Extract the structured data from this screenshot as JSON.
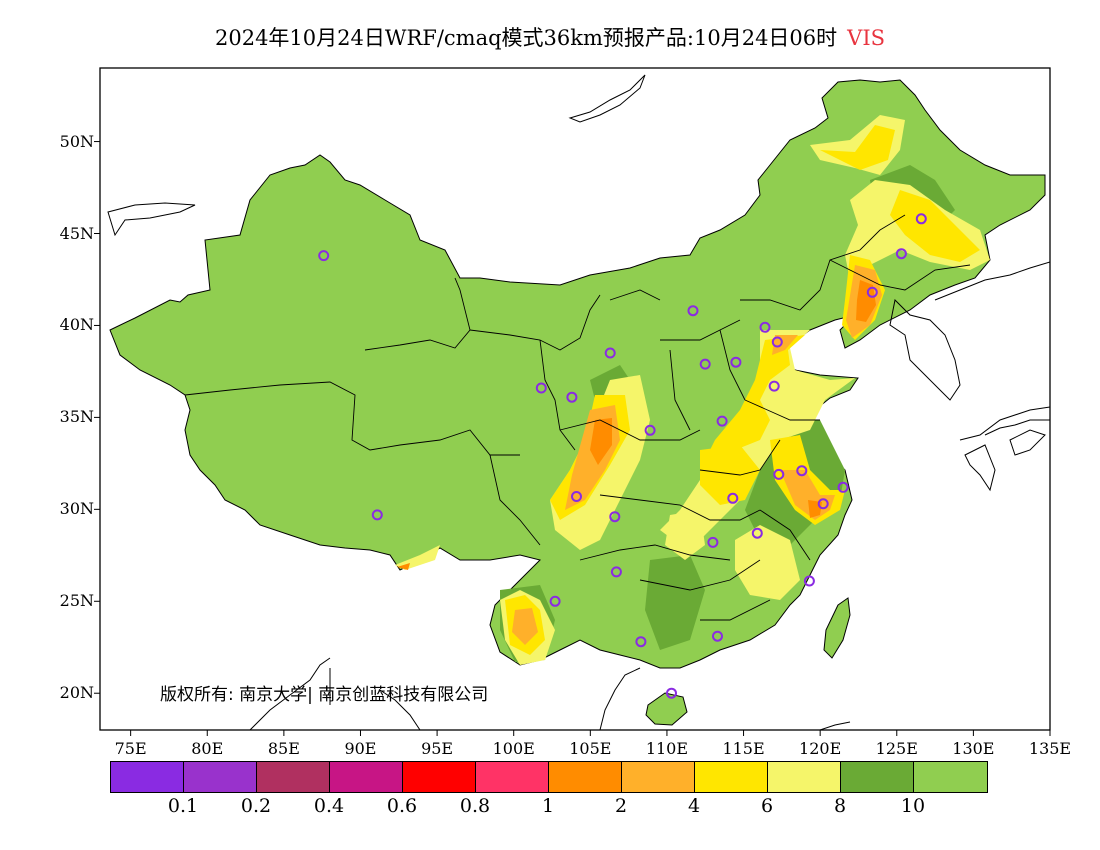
{
  "title": {
    "main": "2024年10月24日WRF/cmaq模式36km预报产品:10月24日06时",
    "variable": "VIS"
  },
  "axes": {
    "lat_labels": [
      "50N",
      "45N",
      "40N",
      "35N",
      "30N",
      "25N",
      "20N"
    ],
    "lon_labels": [
      "75E",
      "80E",
      "85E",
      "90E",
      "95E",
      "100E",
      "105E",
      "110E",
      "115E",
      "120E",
      "125E",
      "130E",
      "135E"
    ],
    "lon_range": [
      73,
      135
    ],
    "lat_range": [
      18,
      54
    ]
  },
  "copyright": "版权所有: 南京大学| 南京创蓝科技有限公司",
  "legend": {
    "colors": [
      "#8a2be2",
      "#9932cc",
      "#b03060",
      "#c71585",
      "#ff0000",
      "#ff3366",
      "#ff8c00",
      "#ffb02a",
      "#ffe600",
      "#f5f56a",
      "#6aaa35",
      "#90ce50"
    ],
    "labels": [
      "0.1",
      "0.2",
      "0.4",
      "0.6",
      "0.8",
      "1",
      "2",
      "4",
      "6",
      "8",
      "10"
    ]
  },
  "colors": {
    "base_land": "#90ce50",
    "dark_green": "#6aaa35",
    "pale_yellow": "#f5f56a",
    "yellow": "#ffe600",
    "amber": "#ffb02a",
    "orange": "#ff8c00",
    "station": "#8a2be2"
  },
  "chart_data": {
    "type": "heatmap",
    "variable": "VIS",
    "stations": [
      {
        "lon": 87.6,
        "lat": 43.8
      },
      {
        "lon": 91.1,
        "lat": 29.7
      },
      {
        "lon": 101.8,
        "lat": 36.6
      },
      {
        "lon": 103.8,
        "lat": 36.1
      },
      {
        "lon": 106.3,
        "lat": 38.5
      },
      {
        "lon": 111.7,
        "lat": 40.8
      },
      {
        "lon": 112.5,
        "lat": 37.9
      },
      {
        "lon": 114.5,
        "lat": 38.0
      },
      {
        "lon": 116.4,
        "lat": 39.9
      },
      {
        "lon": 117.2,
        "lat": 39.1
      },
      {
        "lon": 117.0,
        "lat": 36.7
      },
      {
        "lon": 113.6,
        "lat": 34.8
      },
      {
        "lon": 108.9,
        "lat": 34.3
      },
      {
        "lon": 104.1,
        "lat": 30.7
      },
      {
        "lon": 106.6,
        "lat": 29.6
      },
      {
        "lon": 114.3,
        "lat": 30.6
      },
      {
        "lon": 117.3,
        "lat": 31.9
      },
      {
        "lon": 118.8,
        "lat": 32.1
      },
      {
        "lon": 121.5,
        "lat": 31.2
      },
      {
        "lon": 120.2,
        "lat": 30.3
      },
      {
        "lon": 115.9,
        "lat": 28.7
      },
      {
        "lon": 113.0,
        "lat": 28.2
      },
      {
        "lon": 106.7,
        "lat": 26.6
      },
      {
        "lon": 102.7,
        "lat": 25.0
      },
      {
        "lon": 108.3,
        "lat": 22.8
      },
      {
        "lon": 113.3,
        "lat": 23.1
      },
      {
        "lon": 119.3,
        "lat": 26.1
      },
      {
        "lon": 110.3,
        "lat": 20.0
      },
      {
        "lon": 123.4,
        "lat": 41.8
      },
      {
        "lon": 125.3,
        "lat": 43.9
      },
      {
        "lon": 126.6,
        "lat": 45.8
      }
    ]
  }
}
